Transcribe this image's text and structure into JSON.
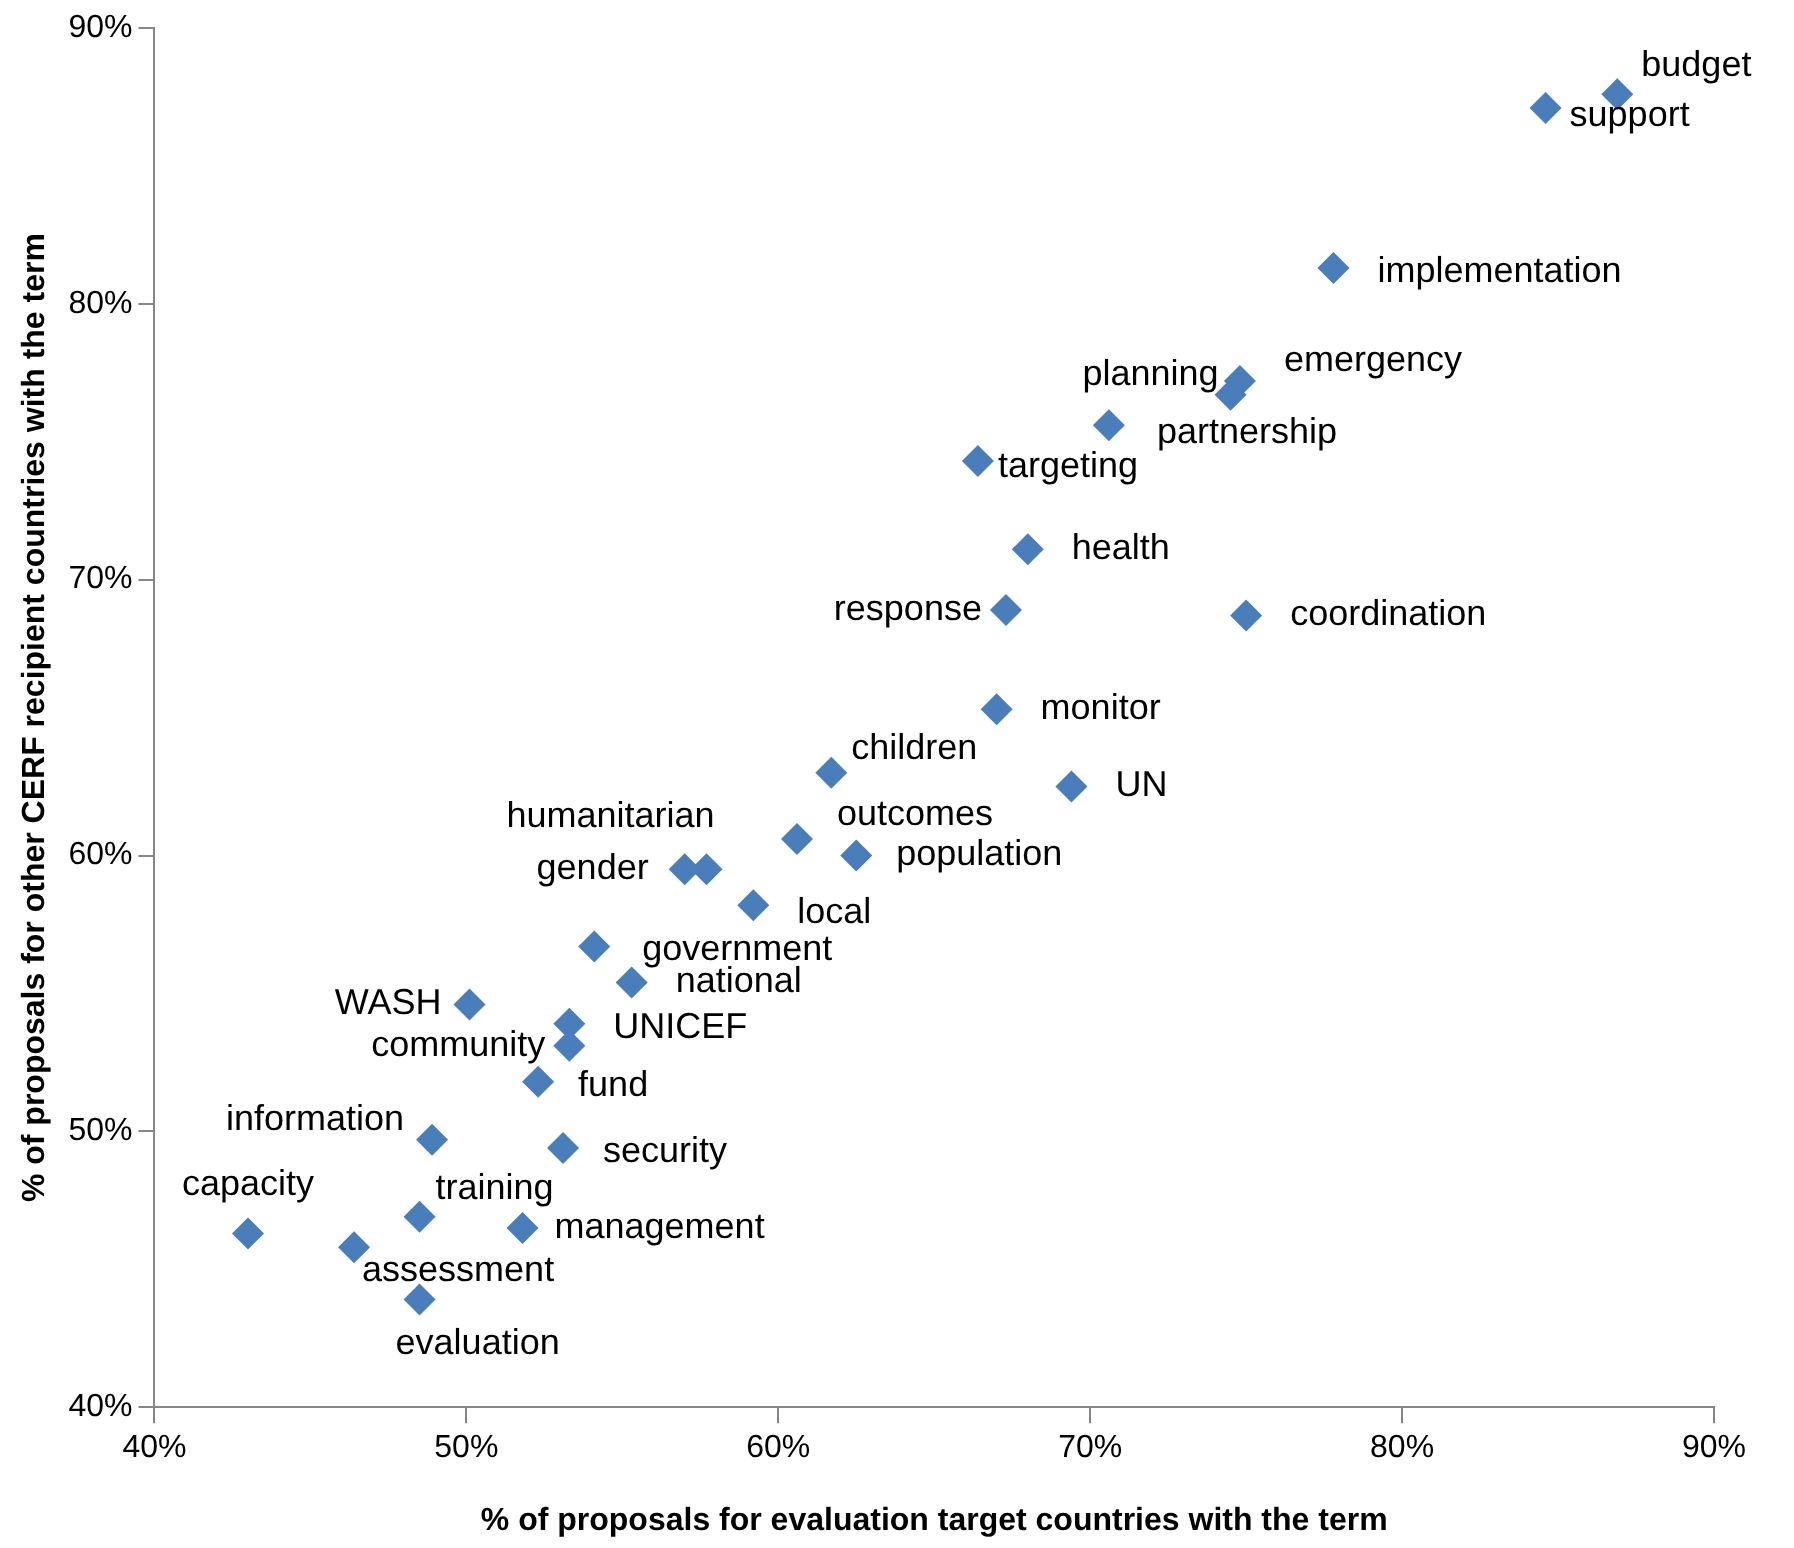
{
  "chart_data": {
    "type": "scatter",
    "xlabel": "% of proposals for evaluation target countries with the term",
    "ylabel": "% of proposals for other CERF recipient countries with the term",
    "xlim": [
      40,
      90
    ],
    "ylim": [
      40,
      90
    ],
    "xticks": [
      {
        "value": 40,
        "label": "40%"
      },
      {
        "value": 50,
        "label": "50%"
      },
      {
        "value": 60,
        "label": "60%"
      },
      {
        "value": 70,
        "label": "70%"
      },
      {
        "value": 80,
        "label": "80%"
      },
      {
        "value": 90,
        "label": "90%"
      }
    ],
    "yticks": [
      {
        "value": 40,
        "label": "40%"
      },
      {
        "value": 50,
        "label": "50%"
      },
      {
        "value": 60,
        "label": "60%"
      },
      {
        "value": 70,
        "label": "70%"
      },
      {
        "value": 80,
        "label": "80%"
      },
      {
        "value": 90,
        "label": "90%"
      }
    ],
    "grid": false,
    "legend": false,
    "marker": "diamond",
    "series": [
      {
        "color": "#4a7ebb",
        "x": [
          86.9,
          84.6,
          77.8,
          74.8,
          74.5,
          70.6,
          66.4,
          68.0,
          67.3,
          75.0,
          67.0,
          61.7,
          69.4,
          60.6,
          62.5,
          57.7,
          57.0,
          59.2,
          54.1,
          55.3,
          50.1,
          53.3,
          53.3,
          52.3,
          48.9,
          53.1,
          48.5,
          43.0,
          46.4,
          51.8,
          48.5
        ],
        "values": [
          87.6,
          87.1,
          81.3,
          77.2,
          76.7,
          75.6,
          74.3,
          71.1,
          68.9,
          68.7,
          65.3,
          63.0,
          62.5,
          60.6,
          60.0,
          59.5,
          59.5,
          58.2,
          56.7,
          55.4,
          54.6,
          53.9,
          53.1,
          51.8,
          49.7,
          49.4,
          46.9,
          46.3,
          45.8,
          46.5,
          43.9
        ]
      }
    ],
    "annotations": [
      {
        "text": "budget",
        "x": 86.9,
        "y": 87.6
      },
      {
        "text": "support",
        "x": 84.6,
        "y": 87.1
      },
      {
        "text": "implementation",
        "x": 77.8,
        "y": 81.3
      },
      {
        "text": "emergency",
        "x": 74.8,
        "y": 77.2
      },
      {
        "text": "planning",
        "x": 74.5,
        "y": 76.7
      },
      {
        "text": "partnership",
        "x": 70.6,
        "y": 75.6
      },
      {
        "text": "targeting",
        "x": 66.4,
        "y": 74.3
      },
      {
        "text": "health",
        "x": 68.0,
        "y": 71.1
      },
      {
        "text": "response",
        "x": 67.3,
        "y": 68.9
      },
      {
        "text": "coordination",
        "x": 75.0,
        "y": 68.7
      },
      {
        "text": "monitor",
        "x": 67.0,
        "y": 65.3
      },
      {
        "text": "children",
        "x": 61.7,
        "y": 63.0
      },
      {
        "text": "UN",
        "x": 69.4,
        "y": 62.5
      },
      {
        "text": "outcomes",
        "x": 60.6,
        "y": 60.6
      },
      {
        "text": "population",
        "x": 62.5,
        "y": 60.0
      },
      {
        "text": "humanitarian",
        "x": 57.7,
        "y": 59.5
      },
      {
        "text": "gender",
        "x": 57.0,
        "y": 59.5
      },
      {
        "text": "local",
        "x": 59.2,
        "y": 58.2
      },
      {
        "text": "government",
        "x": 54.1,
        "y": 56.7
      },
      {
        "text": "national",
        "x": 55.3,
        "y": 55.4
      },
      {
        "text": "WASH",
        "x": 50.1,
        "y": 54.6
      },
      {
        "text": "UNICEF",
        "x": 53.3,
        "y": 53.9
      },
      {
        "text": "community",
        "x": 53.3,
        "y": 53.1
      },
      {
        "text": "fund",
        "x": 52.3,
        "y": 51.8
      },
      {
        "text": "information",
        "x": 48.9,
        "y": 49.7
      },
      {
        "text": "security",
        "x": 53.1,
        "y": 49.4
      },
      {
        "text": "training",
        "x": 48.5,
        "y": 46.9
      },
      {
        "text": "capacity",
        "x": 43.0,
        "y": 46.3
      },
      {
        "text": "assessment",
        "x": 46.4,
        "y": 45.8
      },
      {
        "text": "management",
        "x": 51.8,
        "y": 46.5
      },
      {
        "text": "evaluation",
        "x": 48.5,
        "y": 43.9
      }
    ]
  }
}
